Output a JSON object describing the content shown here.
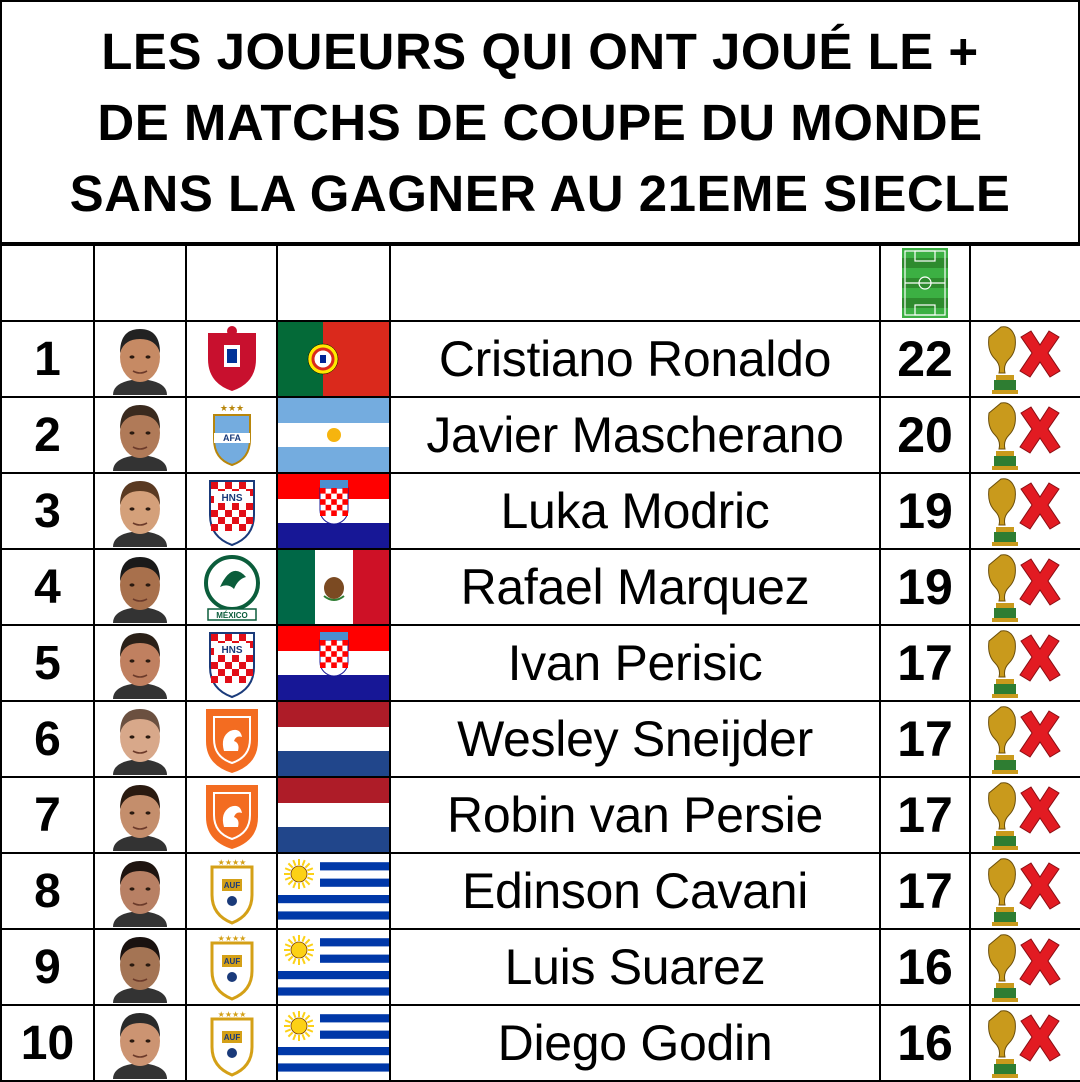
{
  "title": {
    "line1": "LES JOUEURS QUI ONT JOUÉ LE +",
    "line2": "DE MATCHS DE COUPE DU MONDE",
    "line3": "SANS LA GAGNER AU 21EME SIECLE"
  },
  "header": {
    "matches_icon": "football-pitch-icon"
  },
  "colors": {
    "pitch": "#3cb043",
    "cross": "#e21b22",
    "trophy": "#c99a1c"
  },
  "players": [
    {
      "rank": "1",
      "name": "Cristiano Ronaldo",
      "matches": "22",
      "country": "portugal",
      "crest": "crest-portugal",
      "result_icon": "trophy-cross-icon"
    },
    {
      "rank": "2",
      "name": "Javier Mascherano",
      "matches": "20",
      "country": "argentina",
      "crest": "crest-argentina",
      "result_icon": "trophy-cross-icon"
    },
    {
      "rank": "3",
      "name": "Luka Modric",
      "matches": "19",
      "country": "croatia",
      "crest": "crest-croatia",
      "result_icon": "trophy-cross-icon"
    },
    {
      "rank": "4",
      "name": "Rafael Marquez",
      "matches": "19",
      "country": "mexico",
      "crest": "crest-mexico",
      "result_icon": "trophy-cross-icon",
      "crest_text": "MÉXICO"
    },
    {
      "rank": "5",
      "name": "Ivan Perisic",
      "matches": "17",
      "country": "croatia",
      "crest": "crest-croatia",
      "result_icon": "trophy-cross-icon"
    },
    {
      "rank": "6",
      "name": "Wesley Sneijder",
      "matches": "17",
      "country": "netherlands",
      "crest": "crest-netherlands",
      "result_icon": "trophy-cross-icon"
    },
    {
      "rank": "7",
      "name": "Robin van Persie",
      "matches": "17",
      "country": "netherlands",
      "crest": "crest-netherlands",
      "result_icon": "trophy-cross-icon"
    },
    {
      "rank": "8",
      "name": "Edinson Cavani",
      "matches": "17",
      "country": "uruguay",
      "crest": "crest-uruguay",
      "result_icon": "trophy-cross-icon"
    },
    {
      "rank": "9",
      "name": "Luis Suarez",
      "matches": "16",
      "country": "uruguay",
      "crest": "crest-uruguay",
      "result_icon": "trophy-cross-icon"
    },
    {
      "rank": "10",
      "name": "Diego Godin",
      "matches": "16",
      "country": "uruguay",
      "crest": "crest-uruguay",
      "result_icon": "trophy-cross-icon"
    }
  ]
}
